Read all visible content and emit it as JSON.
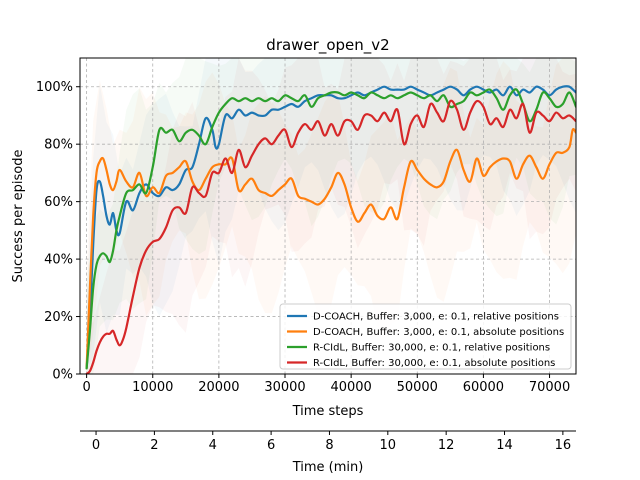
{
  "chart_data": {
    "type": "line",
    "title": "drawer_open_v2",
    "xlabel": "Time steps",
    "ylabel": "Success per episode",
    "secondary_xlabel": "Time (min)",
    "xlim": [
      -1000,
      74000
    ],
    "ylim": [
      0,
      110
    ],
    "secondary_xlim": [
      -0.55,
      16.45
    ],
    "grid": true,
    "grid_style": "dashed",
    "legend_position": "lower-right",
    "x_ticks": [
      0,
      10000,
      20000,
      30000,
      40000,
      50000,
      60000,
      70000
    ],
    "x_tick_labels": [
      "0",
      "10000",
      "20000",
      "30000",
      "40000",
      "50000",
      "60000",
      "70000"
    ],
    "y_ticks": [
      0,
      20,
      40,
      60,
      80,
      100
    ],
    "y_tick_labels": [
      "0%",
      "20%",
      "40%",
      "60%",
      "80%",
      "100%"
    ],
    "secondary_x_ticks": [
      0,
      2,
      4,
      6,
      8,
      10,
      12,
      14,
      16
    ],
    "secondary_x_tick_labels": [
      "0",
      "2",
      "4",
      "6",
      "8",
      "10",
      "12",
      "14",
      "16"
    ],
    "series": [
      {
        "name": "D-COACH, Buffer: 3,000, e: 0.1, relative positions",
        "color": "#1f77b4",
        "x": [
          0,
          500,
          1000,
          1500,
          2000,
          2500,
          3000,
          3500,
          4000,
          4500,
          5000,
          6000,
          7000,
          8000,
          9000,
          10000,
          11000,
          12000,
          13000,
          14000,
          15000,
          16000,
          17000,
          18000,
          19000,
          19500,
          20000,
          21000,
          22000,
          23000,
          24000,
          25000,
          26000,
          27000,
          28000,
          29000,
          30000,
          31000,
          32000,
          33000,
          34000,
          35000,
          36000,
          37000,
          38000,
          39000,
          40000,
          41000,
          42000,
          43000,
          44000,
          45000,
          46000,
          47000,
          48000,
          49000,
          50000,
          51000,
          52000,
          53000,
          54000,
          55000,
          56000,
          57000,
          58000,
          59000,
          60000,
          61000,
          62000,
          63000,
          64000,
          65000,
          66000,
          67000,
          68000,
          69000,
          70000,
          71000,
          72000,
          73000,
          74000
        ],
        "y": [
          2,
          20,
          45,
          64,
          67,
          62,
          55,
          52,
          56,
          50,
          49,
          60,
          57,
          63,
          66,
          63,
          62,
          65,
          64,
          66,
          71,
          72,
          80,
          89,
          85,
          79,
          80,
          90,
          89,
          92,
          90,
          91,
          90,
          90,
          92,
          92,
          93,
          94,
          93,
          95,
          96,
          97,
          97,
          97,
          96,
          96,
          97,
          98,
          97,
          98,
          99,
          100,
          99,
          99,
          99,
          100,
          99,
          98,
          97,
          98,
          99,
          100,
          99,
          97,
          99,
          100,
          99,
          98,
          99,
          97,
          100,
          97,
          99,
          98,
          100,
          99,
          97,
          99,
          100,
          100,
          98
        ]
      },
      {
        "name": "D-COACH, Buffer: 3,000, e: 0.1, absolute positions",
        "color": "#ff7f0e",
        "x": [
          0,
          500,
          1000,
          1500,
          2000,
          2500,
          3000,
          3500,
          4000,
          4500,
          5000,
          6000,
          7000,
          8000,
          9000,
          10000,
          11000,
          12000,
          13000,
          14000,
          15000,
          16000,
          17000,
          18000,
          19000,
          20000,
          21000,
          22000,
          23000,
          24000,
          25000,
          26000,
          27000,
          28000,
          29000,
          30000,
          31000,
          32000,
          33000,
          34000,
          35000,
          36000,
          37000,
          38000,
          39000,
          40000,
          41000,
          42000,
          43000,
          44000,
          45000,
          46000,
          47000,
          48000,
          49000,
          50000,
          51000,
          52000,
          53000,
          54000,
          55000,
          56000,
          57000,
          58000,
          59000,
          60000,
          61000,
          62000,
          63000,
          64000,
          65000,
          66000,
          67000,
          68000,
          69000,
          70000,
          71000,
          72000,
          73000,
          73500,
          74000
        ],
        "y": [
          2,
          30,
          55,
          70,
          74,
          75,
          71,
          66,
          64,
          67,
          71,
          67,
          65,
          70,
          62,
          65,
          63,
          69,
          70,
          72,
          74,
          67,
          64,
          68,
          72,
          73,
          73,
          75,
          64,
          66,
          68,
          64,
          63,
          62,
          64,
          66,
          68,
          62,
          61,
          60,
          59,
          61,
          65,
          70,
          66,
          58,
          53,
          56,
          59,
          55,
          54,
          58,
          54,
          65,
          74,
          71,
          68,
          66,
          65,
          67,
          74,
          78,
          71,
          67,
          75,
          69,
          72,
          74,
          75,
          74,
          68,
          73,
          76,
          72,
          68,
          73,
          77,
          77,
          79,
          85,
          84
        ]
      },
      {
        "name": "R-CIdL, Buffer: 30,000, e: 0.1, relative positions",
        "color": "#2ca02c",
        "x": [
          0,
          500,
          1000,
          1500,
          2000,
          2500,
          3000,
          3500,
          4000,
          4500,
          5000,
          6000,
          7000,
          8000,
          9000,
          10000,
          11000,
          12000,
          13000,
          14000,
          15000,
          16000,
          17000,
          18000,
          19000,
          20000,
          21000,
          22000,
          23000,
          24000,
          25000,
          26000,
          27000,
          28000,
          29000,
          30000,
          31000,
          32000,
          33000,
          34000,
          35000,
          36000,
          37000,
          38000,
          39000,
          40000,
          41000,
          42000,
          43000,
          44000,
          45000,
          46000,
          47000,
          48000,
          49000,
          50000,
          51000,
          52000,
          53000,
          54000,
          55000,
          56000,
          57000,
          58000,
          59000,
          60000,
          61000,
          62000,
          63000,
          64000,
          65000,
          66000,
          67000,
          68000,
          69000,
          70000,
          71000,
          72000,
          73000,
          74000
        ],
        "y": [
          2,
          15,
          30,
          38,
          41,
          42,
          41,
          39,
          43,
          50,
          55,
          63,
          64,
          66,
          63,
          72,
          85,
          84,
          85,
          81,
          84,
          85,
          83,
          80,
          86,
          91,
          94,
          96,
          95,
          96,
          95,
          96,
          95,
          96,
          95,
          97,
          96,
          95,
          97,
          93,
          96,
          97,
          98,
          98,
          97,
          98,
          97,
          96,
          98,
          97,
          96,
          97,
          96,
          97,
          98,
          97,
          96,
          97,
          95,
          97,
          93,
          94,
          95,
          98,
          97,
          98,
          99,
          96,
          92,
          97,
          99,
          94,
          88,
          92,
          98,
          96,
          93,
          94,
          98,
          93
        ]
      },
      {
        "name": "R-CIdL, Buffer: 30,000, e: 0.1, absolute positions",
        "color": "#d62728",
        "x": [
          0,
          500,
          1000,
          1500,
          2000,
          2500,
          3000,
          3500,
          4000,
          4500,
          5000,
          5500,
          6000,
          7000,
          8000,
          9000,
          10000,
          11000,
          12000,
          13000,
          14000,
          15000,
          16000,
          17000,
          18000,
          19000,
          20000,
          21000,
          22000,
          23000,
          24000,
          25000,
          26000,
          27000,
          28000,
          29000,
          30000,
          31000,
          32000,
          33000,
          34000,
          35000,
          36000,
          37000,
          38000,
          39000,
          40000,
          41000,
          42000,
          43000,
          44000,
          45000,
          46000,
          47000,
          48000,
          49000,
          50000,
          51000,
          52000,
          53000,
          54000,
          55000,
          56000,
          57000,
          58000,
          59000,
          60000,
          61000,
          62000,
          63000,
          64000,
          65000,
          66000,
          67000,
          68000,
          69000,
          70000,
          71000,
          72000,
          73000,
          74000
        ],
        "y": [
          0,
          1,
          4,
          8,
          11,
          13,
          14,
          14,
          15,
          12,
          10,
          12,
          16,
          27,
          37,
          43,
          46,
          47,
          51,
          57,
          58,
          56,
          65,
          63,
          62,
          70,
          70,
          75,
          70,
          78,
          72,
          76,
          80,
          82,
          80,
          83,
          85,
          79,
          84,
          87,
          85,
          88,
          83,
          87,
          83,
          88,
          88,
          85,
          90,
          90,
          88,
          91,
          88,
          92,
          80,
          87,
          90,
          86,
          94,
          91,
          88,
          95,
          92,
          85,
          91,
          95,
          93,
          87,
          89,
          86,
          92,
          89,
          94,
          84,
          91,
          90,
          88,
          91,
          89,
          90,
          88
        ]
      }
    ]
  }
}
